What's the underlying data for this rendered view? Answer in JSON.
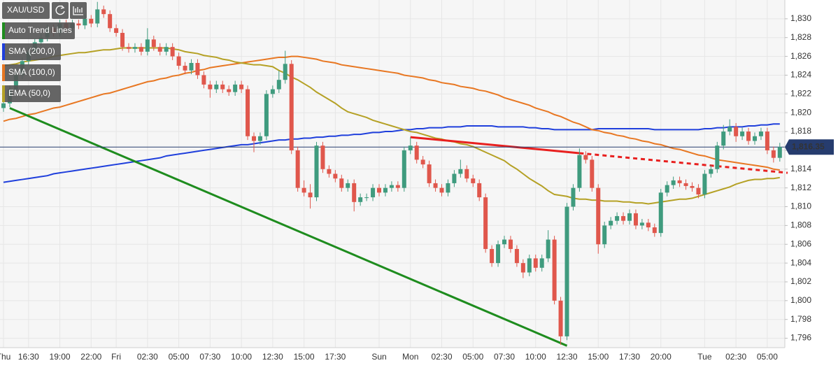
{
  "chart_data": {
    "type": "candlestick",
    "symbol": "XAU/USD",
    "categories": [
      "Thu",
      null,
      null,
      null,
      "16:30",
      null,
      null,
      null,
      null,
      "19:00",
      null,
      null,
      null,
      null,
      "22:00",
      null,
      null,
      null,
      "Fri",
      null,
      null,
      null,
      null,
      "02:30",
      null,
      null,
      null,
      null,
      "05:00",
      null,
      null,
      null,
      null,
      "07:30",
      null,
      null,
      null,
      null,
      "10:00",
      null,
      null,
      null,
      null,
      "12:30",
      null,
      null,
      null,
      null,
      "15:00",
      null,
      null,
      null,
      null,
      "17:30",
      null,
      null,
      null,
      null,
      null,
      null,
      "Sun",
      null,
      null,
      null,
      null,
      "Mon",
      null,
      null,
      null,
      null,
      "02:30",
      null,
      null,
      null,
      null,
      "05:00",
      null,
      null,
      null,
      null,
      "07:30",
      null,
      null,
      null,
      null,
      "10:00",
      null,
      null,
      null,
      null,
      "12:30",
      null,
      null,
      null,
      null,
      "15:00",
      null,
      null,
      null,
      null,
      "17:30",
      null,
      null,
      null,
      null,
      "20:00",
      null,
      null,
      null,
      null,
      null,
      null,
      "Tue",
      null,
      null,
      null,
      null,
      "02:30",
      null,
      null,
      null,
      null,
      "05:00",
      null,
      null
    ],
    "open": [
      1820.5,
      1821.0,
      1822.5,
      1824.0,
      1825.5,
      1826.5,
      1827.5,
      1828.0,
      1829.0,
      1828.5,
      1829.5,
      1829.0,
      1829.5,
      1829.3,
      1830.0,
      1829.5,
      1831.0,
      1830.5,
      1829.0,
      1828.5,
      1827.0,
      1826.8,
      1827.0,
      1826.5,
      1827.8,
      1827.0,
      1826.5,
      1827.0,
      1826.0,
      1825.0,
      1824.5,
      1825.3,
      1824.0,
      1823.0,
      1822.5,
      1823.0,
      1822.5,
      1822.2,
      1823.0,
      1822.5,
      1817.5,
      1817.0,
      1817.5,
      1822.0,
      1822.5,
      1823.5,
      1825.2,
      1816.0,
      1812.0,
      1811.5,
      1811.0,
      1816.5,
      1814.0,
      1813.5,
      1813.0,
      1812.0,
      1812.5,
      1810.5,
      1811.0,
      1811.0,
      1812.0,
      1811.5,
      1812.0,
      1812.3,
      1812.0,
      1816.0,
      1816.5,
      1815.0,
      1814.5,
      1812.5,
      1812.0,
      1811.5,
      1812.5,
      1813.5,
      1814.0,
      1813.0,
      1812.5,
      1811.0,
      1805.5,
      1804.0,
      1806.0,
      1806.5,
      1805.5,
      1804.0,
      1803.0,
      1804.5,
      1803.5,
      1804.5,
      1806.5,
      1800.0,
      1796.2,
      1810.0,
      1812.0,
      1815.5,
      1815.0,
      1812.0,
      1806.0,
      1808.0,
      1808.5,
      1809.0,
      1808.5,
      1809.3,
      1808.0,
      1808.3,
      1807.8,
      1807.2,
      1811.5,
      1812.3,
      1812.8,
      1812.5,
      1812.2,
      1812.0,
      1811.3,
      1813.5,
      1814.0,
      1816.5,
      1818.0,
      1818.5,
      1817.5,
      1818.0,
      1817.0,
      1817.5,
      1818.0,
      1816.0,
      1815.2
    ],
    "high": [
      1821.4,
      1822.9,
      1824.4,
      1825.9,
      1826.9,
      1827.9,
      1828.4,
      1829.4,
      1829.4,
      1829.9,
      1829.9,
      1829.9,
      1829.9,
      1830.4,
      1830.4,
      1831.8,
      1831.4,
      1830.9,
      1829.4,
      1828.9,
      1827.4,
      1827.4,
      1827.4,
      1829.0,
      1828.2,
      1827.4,
      1827.4,
      1827.4,
      1826.4,
      1825.4,
      1825.7,
      1825.7,
      1824.4,
      1823.4,
      1823.4,
      1823.4,
      1822.9,
      1823.4,
      1823.4,
      1822.9,
      1817.9,
      1817.9,
      1822.4,
      1822.9,
      1824.5,
      1826.6,
      1825.6,
      1816.4,
      1812.8,
      1812.4,
      1816.9,
      1816.9,
      1814.4,
      1813.9,
      1813.4,
      1812.9,
      1812.9,
      1811.4,
      1811.4,
      1812.4,
      1812.4,
      1812.4,
      1812.7,
      1812.7,
      1816.4,
      1817.4,
      1816.9,
      1815.4,
      1814.9,
      1812.9,
      1812.4,
      1812.9,
      1813.9,
      1815.0,
      1814.4,
      1813.4,
      1812.9,
      1811.4,
      1805.9,
      1806.4,
      1806.9,
      1806.9,
      1805.9,
      1804.4,
      1804.9,
      1804.9,
      1804.9,
      1807.5,
      1806.9,
      1800.4,
      1810.4,
      1812.4,
      1816.2,
      1815.9,
      1815.4,
      1812.4,
      1808.4,
      1808.9,
      1809.4,
      1809.4,
      1809.7,
      1809.7,
      1808.7,
      1808.7,
      1808.2,
      1811.9,
      1812.7,
      1813.2,
      1813.2,
      1812.9,
      1812.6,
      1812.4,
      1813.9,
      1814.4,
      1816.9,
      1818.7,
      1819.3,
      1818.9,
      1818.4,
      1818.4,
      1817.9,
      1818.4,
      1818.4,
      1816.4,
      1816.8
    ],
    "low": [
      1820.1,
      1820.6,
      1822.1,
      1823.6,
      1825.1,
      1826.1,
      1827.1,
      1827.6,
      1828.1,
      1828.1,
      1828.6,
      1828.6,
      1828.9,
      1828.9,
      1829.1,
      1829.1,
      1830.1,
      1828.6,
      1828.1,
      1826.6,
      1826.4,
      1826.4,
      1826.1,
      1826.1,
      1826.6,
      1826.1,
      1826.1,
      1825.6,
      1824.6,
      1824.1,
      1824.1,
      1823.6,
      1822.6,
      1821.6,
      1822.1,
      1822.1,
      1821.8,
      1821.8,
      1822.1,
      1817.1,
      1815.8,
      1816.6,
      1817.1,
      1821.6,
      1822.1,
      1823.1,
      1815.6,
      1811.6,
      1811.1,
      1809.8,
      1810.6,
      1813.6,
      1813.1,
      1812.6,
      1811.6,
      1811.6,
      1809.5,
      1810.1,
      1810.6,
      1810.6,
      1811.1,
      1811.1,
      1811.6,
      1811.6,
      1811.6,
      1815.6,
      1814.6,
      1814.1,
      1812.1,
      1811.6,
      1811.1,
      1811.1,
      1812.1,
      1813.1,
      1812.6,
      1812.1,
      1810.6,
      1805.1,
      1803.6,
      1803.6,
      1805.6,
      1805.1,
      1803.6,
      1802.4,
      1802.6,
      1803.1,
      1803.1,
      1804.1,
      1799.6,
      1795.3,
      1795.8,
      1809.6,
      1811.6,
      1814.6,
      1811.6,
      1805.0,
      1805.6,
      1807.6,
      1808.1,
      1808.1,
      1808.1,
      1807.6,
      1807.6,
      1807.4,
      1806.8,
      1806.8,
      1811.1,
      1811.9,
      1812.1,
      1811.8,
      1811.6,
      1810.9,
      1810.9,
      1813.1,
      1813.6,
      1816.1,
      1817.6,
      1816.9,
      1817.1,
      1816.6,
      1816.6,
      1817.1,
      1815.6,
      1814.7,
      1814.8
    ],
    "close": [
      1821.0,
      1822.5,
      1824.0,
      1825.5,
      1826.5,
      1827.5,
      1828.0,
      1829.0,
      1828.5,
      1829.5,
      1829.0,
      1829.5,
      1829.3,
      1830.0,
      1829.5,
      1831.0,
      1830.5,
      1829.0,
      1828.5,
      1827.0,
      1826.8,
      1827.0,
      1826.5,
      1827.8,
      1827.0,
      1826.5,
      1827.0,
      1826.0,
      1825.0,
      1824.5,
      1825.3,
      1824.0,
      1823.0,
      1822.5,
      1823.0,
      1822.5,
      1822.2,
      1823.0,
      1822.5,
      1817.5,
      1817.0,
      1817.5,
      1822.0,
      1822.5,
      1823.5,
      1825.2,
      1816.0,
      1812.0,
      1811.5,
      1811.0,
      1816.5,
      1814.0,
      1813.5,
      1813.0,
      1812.0,
      1812.5,
      1810.5,
      1811.0,
      1811.0,
      1812.0,
      1811.5,
      1812.0,
      1812.3,
      1812.0,
      1816.0,
      1816.5,
      1815.0,
      1814.5,
      1812.5,
      1812.0,
      1811.5,
      1812.5,
      1813.5,
      1814.0,
      1813.0,
      1812.5,
      1811.0,
      1805.5,
      1804.0,
      1806.0,
      1806.5,
      1805.5,
      1804.0,
      1803.0,
      1804.5,
      1803.5,
      1804.5,
      1806.5,
      1800.0,
      1796.2,
      1810.0,
      1812.0,
      1815.5,
      1815.0,
      1812.0,
      1806.0,
      1808.0,
      1808.5,
      1809.0,
      1808.5,
      1809.3,
      1808.0,
      1808.3,
      1807.8,
      1807.2,
      1811.5,
      1812.3,
      1812.8,
      1812.5,
      1812.2,
      1812.0,
      1811.3,
      1813.5,
      1814.0,
      1816.5,
      1818.0,
      1818.5,
      1817.5,
      1818.0,
      1817.0,
      1817.5,
      1818.0,
      1816.0,
      1815.2,
      1816.35
    ],
    "up_color": "#3f9b7e",
    "down_color": "#e0574c",
    "trend_lines": {
      "name": "Auto Trend Lines",
      "color": "#1e8c1e",
      "lines": [
        {
          "color": "#1e8c1e",
          "x": [
            1,
            90
          ],
          "values": [
            1820.5,
            1795.2
          ]
        },
        {
          "color": "#e8201f",
          "x": [
            65,
            92
          ],
          "values": [
            1817.4,
            1815.7
          ],
          "extend": true
        }
      ]
    },
    "overlays": [
      {
        "name": "SMA (200,0)",
        "color": "#1f3fdc",
        "values": [
          1812.6,
          1812.7,
          1812.8,
          1812.9,
          1813.0,
          1813.1,
          1813.2,
          1813.3,
          1813.5,
          1813.6,
          1813.7,
          1813.8,
          1813.9,
          1814.0,
          1814.1,
          1814.2,
          1814.3,
          1814.4,
          1814.5,
          1814.6,
          1814.7,
          1814.8,
          1814.9,
          1815.0,
          1815.1,
          1815.2,
          1815.4,
          1815.5,
          1815.6,
          1815.7,
          1815.8,
          1815.9,
          1816.0,
          1816.1,
          1816.2,
          1816.3,
          1816.4,
          1816.5,
          1816.6,
          1816.6,
          1816.7,
          1816.8,
          1816.9,
          1817.0,
          1817.1,
          1817.1,
          1817.2,
          1817.2,
          1817.3,
          1817.3,
          1817.4,
          1817.4,
          1817.5,
          1817.5,
          1817.6,
          1817.6,
          1817.7,
          1817.7,
          1817.8,
          1817.9,
          1817.9,
          1818.0,
          1818.0,
          1818.1,
          1818.2,
          1818.2,
          1818.3,
          1818.3,
          1818.4,
          1818.4,
          1818.4,
          1818.5,
          1818.5,
          1818.5,
          1818.6,
          1818.6,
          1818.6,
          1818.6,
          1818.6,
          1818.5,
          1818.5,
          1818.5,
          1818.5,
          1818.5,
          1818.4,
          1818.4,
          1818.3,
          1818.3,
          1818.2,
          1818.2,
          1818.2,
          1818.2,
          1818.2,
          1818.2,
          1818.2,
          1818.3,
          1818.3,
          1818.3,
          1818.3,
          1818.3,
          1818.3,
          1818.3,
          1818.3,
          1818.3,
          1818.2,
          1818.2,
          1818.2,
          1818.2,
          1818.2,
          1818.2,
          1818.2,
          1818.2,
          1818.3,
          1818.3,
          1818.4,
          1818.4,
          1818.5,
          1818.5,
          1818.5,
          1818.6,
          1818.6,
          1818.7,
          1818.7,
          1818.8,
          1818.8
        ]
      },
      {
        "name": "SMA (100,0)",
        "color": "#e87722",
        "values": [
          1819.1,
          1819.3,
          1819.4,
          1819.6,
          1819.8,
          1819.9,
          1820.1,
          1820.3,
          1820.5,
          1820.6,
          1820.8,
          1821.0,
          1821.2,
          1821.4,
          1821.6,
          1821.8,
          1822.0,
          1822.1,
          1822.3,
          1822.5,
          1822.7,
          1822.9,
          1823.1,
          1823.3,
          1823.4,
          1823.6,
          1823.7,
          1823.9,
          1824.0,
          1824.2,
          1824.3,
          1824.5,
          1824.6,
          1824.8,
          1824.9,
          1825.0,
          1825.1,
          1825.2,
          1825.3,
          1825.4,
          1825.5,
          1825.6,
          1825.7,
          1825.8,
          1825.9,
          1825.9,
          1826.0,
          1826.0,
          1825.9,
          1825.8,
          1825.7,
          1825.5,
          1825.4,
          1825.3,
          1825.1,
          1825.0,
          1824.9,
          1824.8,
          1824.7,
          1824.6,
          1824.5,
          1824.4,
          1824.3,
          1824.2,
          1824.0,
          1823.9,
          1823.8,
          1823.7,
          1823.5,
          1823.4,
          1823.2,
          1823.1,
          1823.0,
          1822.8,
          1822.7,
          1822.6,
          1822.4,
          1822.3,
          1822.1,
          1821.9,
          1821.6,
          1821.4,
          1821.2,
          1821.0,
          1820.8,
          1820.5,
          1820.3,
          1820.1,
          1819.8,
          1819.6,
          1819.3,
          1819.0,
          1818.8,
          1818.5,
          1818.2,
          1818.1,
          1817.9,
          1817.8,
          1817.6,
          1817.5,
          1817.3,
          1817.2,
          1817.0,
          1816.9,
          1816.7,
          1816.6,
          1816.4,
          1816.2,
          1816.1,
          1815.9,
          1815.7,
          1815.5,
          1815.4,
          1815.2,
          1815.0,
          1814.9,
          1814.8,
          1814.7,
          1814.6,
          1814.5,
          1814.4,
          1814.3,
          1814.2,
          1814.0,
          1813.9
        ]
      },
      {
        "name": "EMA (50,0)",
        "color": "#b5a125",
        "values": [
          1825.0,
          1825.1,
          1825.2,
          1825.4,
          1825.5,
          1825.6,
          1825.7,
          1825.8,
          1826.0,
          1826.1,
          1826.2,
          1826.3,
          1826.4,
          1826.4,
          1826.5,
          1826.6,
          1826.7,
          1826.7,
          1826.8,
          1826.9,
          1826.9,
          1826.9,
          1826.9,
          1826.9,
          1826.9,
          1826.9,
          1826.9,
          1826.8,
          1826.7,
          1826.5,
          1826.4,
          1826.3,
          1826.1,
          1826.0,
          1825.9,
          1825.7,
          1825.6,
          1825.4,
          1825.3,
          1825.2,
          1825.1,
          1825.1,
          1825.0,
          1824.9,
          1824.5,
          1824.2,
          1823.8,
          1823.5,
          1823.1,
          1822.7,
          1822.2,
          1821.8,
          1821.4,
          1821.0,
          1820.5,
          1820.1,
          1819.9,
          1819.7,
          1819.5,
          1819.2,
          1819.0,
          1818.8,
          1818.6,
          1818.4,
          1818.2,
          1818.0,
          1817.9,
          1817.7,
          1817.5,
          1817.3,
          1817.2,
          1817.0,
          1816.9,
          1816.7,
          1816.6,
          1816.4,
          1816.1,
          1815.8,
          1815.5,
          1815.2,
          1814.9,
          1814.4,
          1814.0,
          1813.5,
          1813.0,
          1812.6,
          1812.2,
          1811.7,
          1811.3,
          1811.2,
          1811.1,
          1810.9,
          1810.8,
          1810.8,
          1810.7,
          1810.7,
          1810.6,
          1810.6,
          1810.6,
          1810.5,
          1810.5,
          1810.4,
          1810.4,
          1810.3,
          1810.4,
          1810.5,
          1810.6,
          1810.7,
          1810.8,
          1810.8,
          1810.9,
          1811.1,
          1811.3,
          1811.5,
          1811.7,
          1811.9,
          1812.1,
          1812.4,
          1812.6,
          1812.8,
          1812.9,
          1812.9,
          1813.0,
          1813.0,
          1813.1
        ]
      }
    ],
    "last_price": {
      "value": 1816.35,
      "label": "1,816.35",
      "color": "#263c6e"
    },
    "ylim": [
      1795,
      1832
    ],
    "yticks": [
      {
        "value": 1796,
        "label": "1,796"
      },
      {
        "value": 1798,
        "label": "1,798"
      },
      {
        "value": 1800,
        "label": "1,800"
      },
      {
        "value": 1802,
        "label": "1,802"
      },
      {
        "value": 1804,
        "label": "1,804"
      },
      {
        "value": 1806,
        "label": "1,806"
      },
      {
        "value": 1808,
        "label": "1,808"
      },
      {
        "value": 1810,
        "label": "1,810"
      },
      {
        "value": 1812,
        "label": "1,812"
      },
      {
        "value": 1814,
        "label": "1,814"
      },
      {
        "value": 1816,
        "label": "1,816"
      },
      {
        "value": 1818,
        "label": "1,818"
      },
      {
        "value": 1820,
        "label": "1,820"
      },
      {
        "value": 1822,
        "label": "1,822"
      },
      {
        "value": 1824,
        "label": "1,824"
      },
      {
        "value": 1826,
        "label": "1,826"
      },
      {
        "value": 1828,
        "label": "1,828"
      },
      {
        "value": 1830,
        "label": "1,830"
      }
    ],
    "grid": true
  }
}
